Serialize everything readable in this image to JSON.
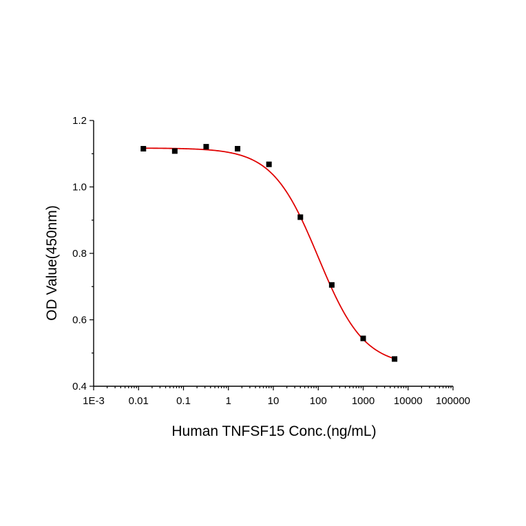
{
  "chart_data": {
    "type": "scatter",
    "xlabel": "Human TNFSF15 Conc.(ng/mL)",
    "ylabel": "OD Value(450nm)",
    "x_scale": "log",
    "xlim": [
      0.001,
      100000
    ],
    "ylim": [
      0.4,
      1.2
    ],
    "x_ticks": [
      {
        "value": 0.001,
        "label": "1E-3"
      },
      {
        "value": 0.01,
        "label": "0.01"
      },
      {
        "value": 0.1,
        "label": "0.1"
      },
      {
        "value": 1,
        "label": "1"
      },
      {
        "value": 10,
        "label": "10"
      },
      {
        "value": 100,
        "label": "100"
      },
      {
        "value": 1000,
        "label": "1000"
      },
      {
        "value": 10000,
        "label": "10000"
      },
      {
        "value": 100000,
        "label": "100000"
      }
    ],
    "y_ticks": [
      {
        "value": 0.4,
        "label": "0.4"
      },
      {
        "value": 0.6,
        "label": "0.6"
      },
      {
        "value": 0.8,
        "label": "0.8"
      },
      {
        "value": 1.0,
        "label": "1.0"
      },
      {
        "value": 1.2,
        "label": "1.2"
      }
    ],
    "series": [
      {
        "marker": "square",
        "color": "#000000",
        "x": [
          0.0128,
          0.064,
          0.32,
          1.6,
          8,
          40,
          200,
          1000,
          5000
        ],
        "y": [
          1.115,
          1.108,
          1.121,
          1.115,
          1.068,
          0.909,
          0.705,
          0.544,
          0.482
        ]
      }
    ],
    "fit_curve": {
      "model": "4PL",
      "color": "#e00000",
      "top": 1.117,
      "bottom": 0.46,
      "ec50": 100,
      "hill": 0.85,
      "x_range": [
        0.0128,
        5000
      ]
    },
    "grid": false,
    "legend": "none"
  }
}
